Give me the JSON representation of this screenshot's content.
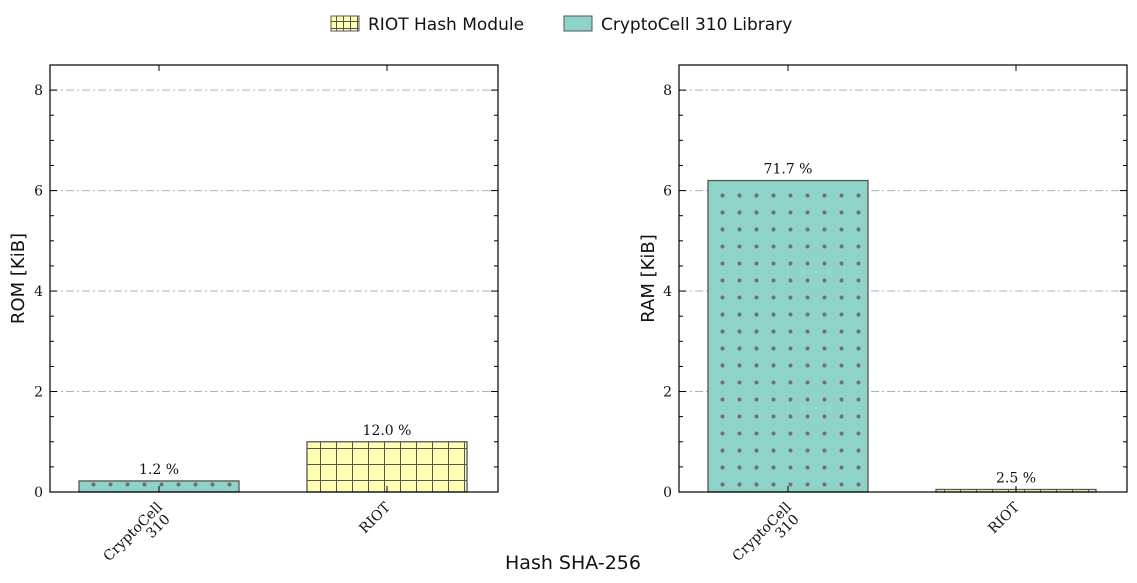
{
  "colors": {
    "riot": "#ffffb3",
    "cryptocell": "#8dd3c7",
    "edge": "#555555",
    "grid": "#b0b0b0",
    "dots": "#707070"
  },
  "legend": {
    "items": [
      {
        "label": "RIOT Hash Module",
        "color": "#ffffb3",
        "hatch": "grid"
      },
      {
        "label": "CryptoCell 310 Library",
        "color": "#8dd3c7",
        "hatch": "none"
      }
    ]
  },
  "chart_data": {
    "type": "bar",
    "xlabel": "Hash SHA-256",
    "categories": [
      "CryptoCell\n310",
      "RIOT"
    ],
    "panels": [
      {
        "ylabel": "ROM [KiB]",
        "ylim": [
          0,
          8.5
        ],
        "yticks": [
          "0",
          "2",
          "4",
          "6",
          "8"
        ],
        "grid": true,
        "bars": [
          {
            "category": "CryptoCell\n310",
            "value": 0.22,
            "label": "1.2 %",
            "series": "CryptoCell 310 Library"
          },
          {
            "category": "RIOT",
            "value": 1.0,
            "label": "12.0 %",
            "series": "RIOT Hash Module"
          }
        ]
      },
      {
        "ylabel": "RAM [KiB]",
        "ylim": [
          0,
          8.5
        ],
        "yticks": [
          "0",
          "2",
          "4",
          "6",
          "8"
        ],
        "grid": true,
        "bars": [
          {
            "category": "CryptoCell\n310",
            "value": 6.2,
            "label": "71.7 %",
            "series": "CryptoCell 310 Library"
          },
          {
            "category": "RIOT",
            "value": 0.05,
            "label": "2.5 %",
            "series": "RIOT Hash Module"
          }
        ]
      }
    ]
  }
}
